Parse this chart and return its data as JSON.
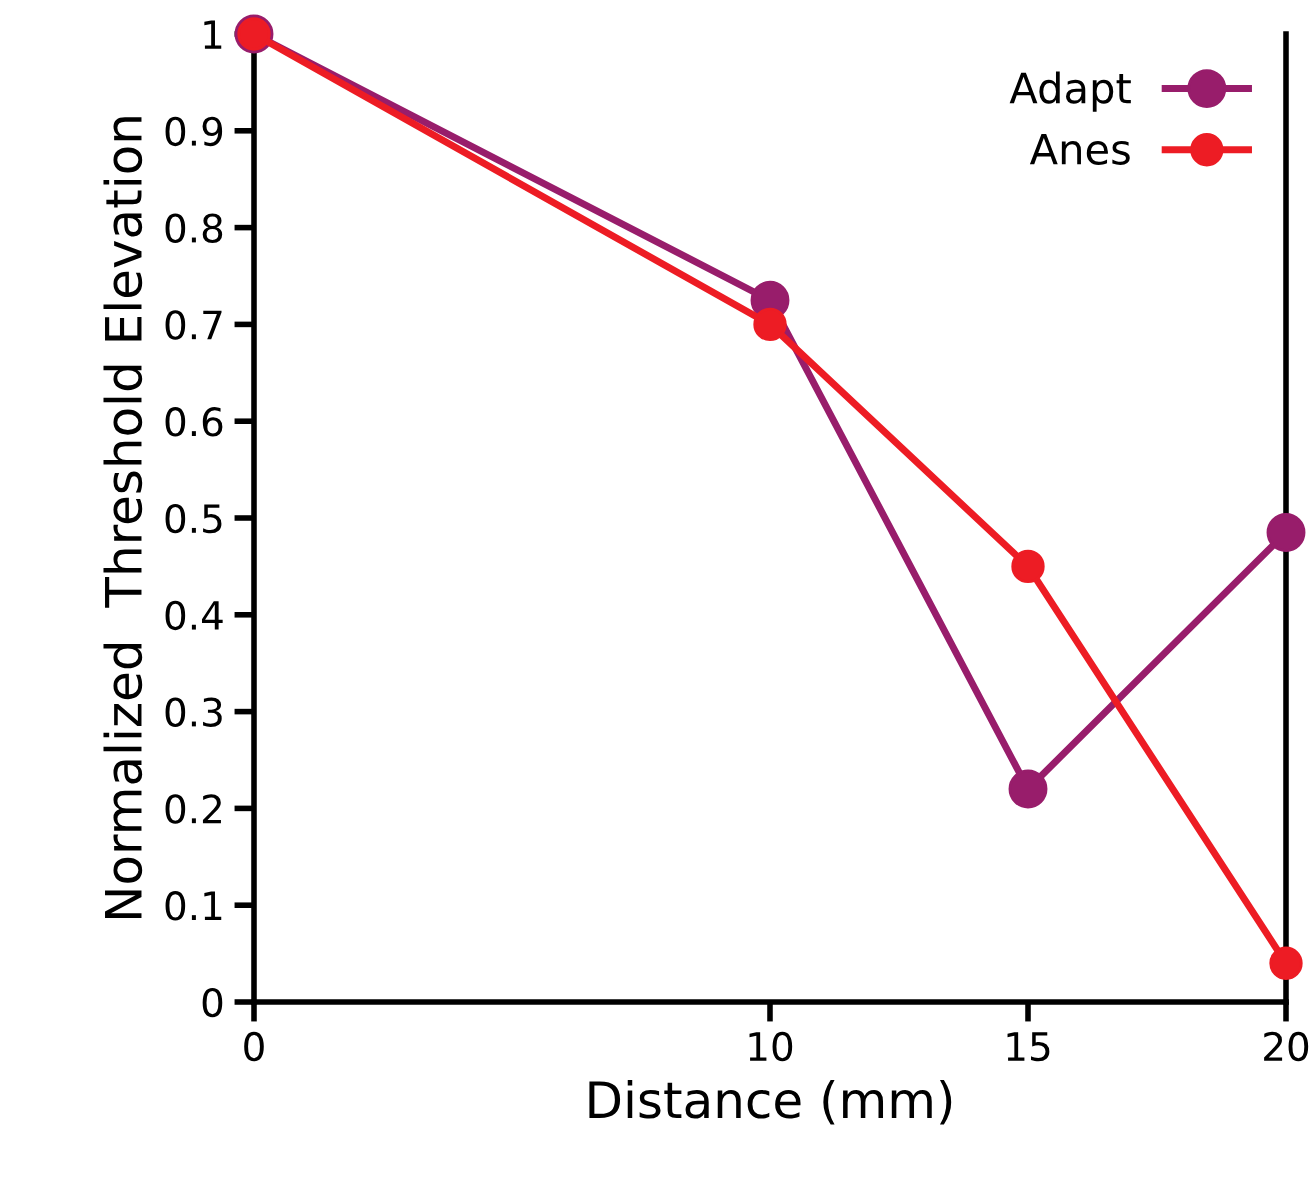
{
  "chart_data": {
    "type": "line",
    "xlabel": "Distance (mm)",
    "ylabel": "Normalized  Threshold Elevation",
    "x": [
      0,
      10,
      15,
      20
    ],
    "series": [
      {
        "name": "Adapt",
        "color": "#981d6b",
        "values": [
          1.0,
          0.725,
          0.22,
          0.485
        ]
      },
      {
        "name": "Anes",
        "color": "#ed1c24",
        "values": [
          1.0,
          0.7,
          0.45,
          0.04
        ]
      }
    ],
    "xlim": [
      0,
      20
    ],
    "xticks": [
      0,
      10,
      15,
      20
    ],
    "ylim": [
      0,
      1
    ],
    "yticks": [
      0,
      0.1,
      0.2,
      0.3,
      0.4,
      0.5,
      0.6,
      0.7,
      0.8,
      0.9,
      1
    ],
    "marker": "circle",
    "line_style": "solid",
    "legend": "top right",
    "grid": false
  }
}
